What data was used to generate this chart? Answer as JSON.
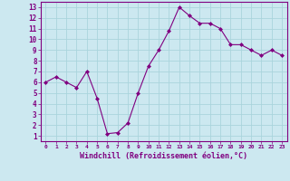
{
  "x": [
    0,
    1,
    2,
    3,
    4,
    5,
    6,
    7,
    8,
    9,
    10,
    11,
    12,
    13,
    14,
    15,
    16,
    17,
    18,
    19,
    20,
    21,
    22,
    23
  ],
  "y": [
    6,
    6.5,
    6,
    5.5,
    7,
    4.5,
    1.2,
    1.3,
    2.2,
    5,
    7.5,
    9,
    10.8,
    13,
    12.2,
    11.5,
    11.5,
    11,
    9.5,
    9.5,
    9,
    8.5,
    9,
    8.5
  ],
  "xlim": [
    -0.5,
    23.5
  ],
  "ylim": [
    0.5,
    13.5
  ],
  "yticks": [
    1,
    2,
    3,
    4,
    5,
    6,
    7,
    8,
    9,
    10,
    11,
    12,
    13
  ],
  "xticks": [
    0,
    1,
    2,
    3,
    4,
    5,
    6,
    7,
    8,
    9,
    10,
    11,
    12,
    13,
    14,
    15,
    16,
    17,
    18,
    19,
    20,
    21,
    22,
    23
  ],
  "xlabel": "Windchill (Refroidissement éolien,°C)",
  "line_color": "#800080",
  "marker": "D",
  "marker_size": 2,
  "bg_color": "#cce8f0",
  "grid_color": "#aad4dc",
  "title": ""
}
